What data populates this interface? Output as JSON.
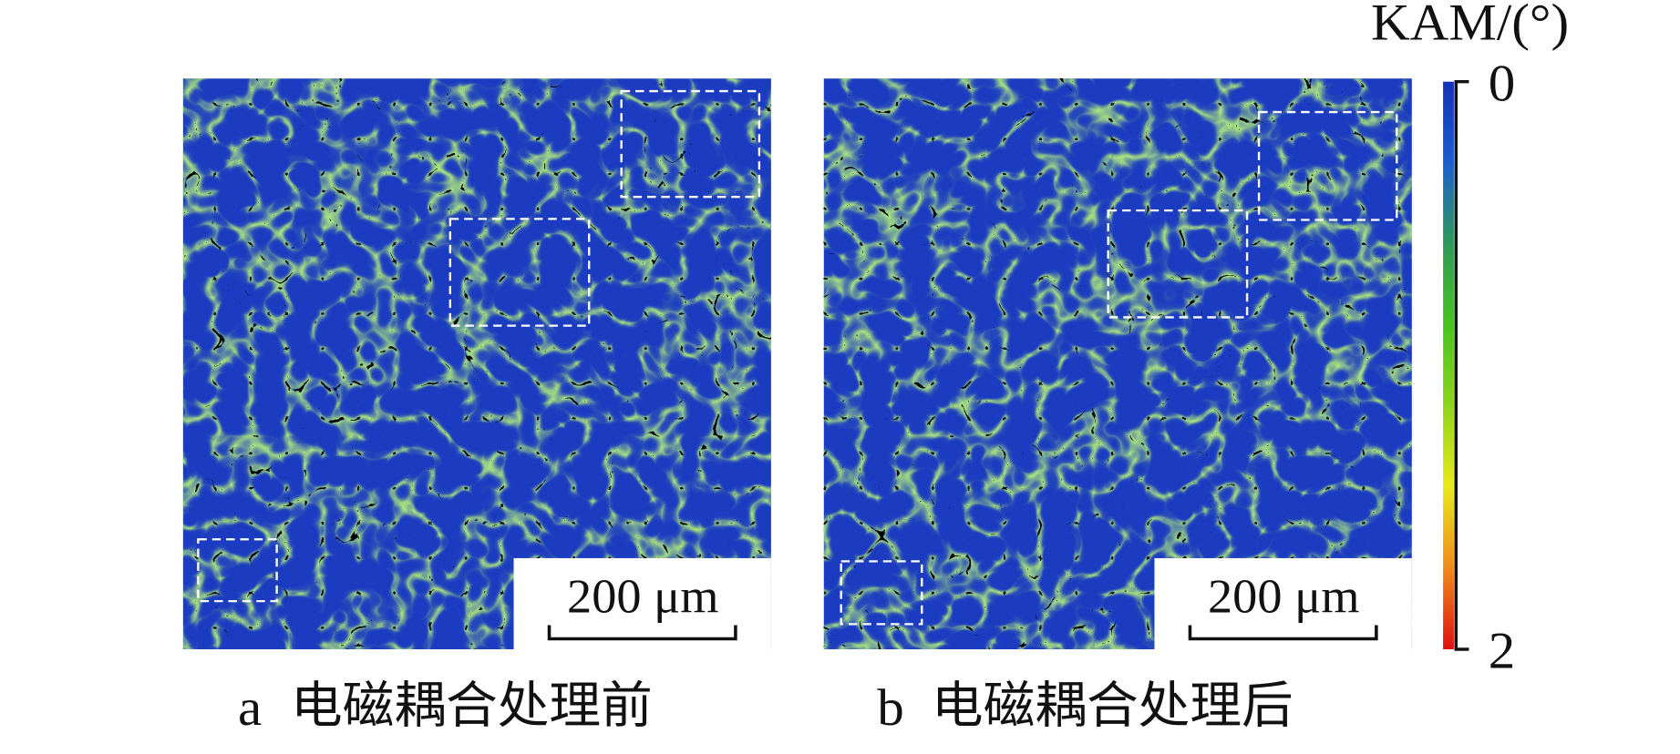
{
  "figure": {
    "colorbar": {
      "title": "KAM/(°)",
      "ticks": [
        0,
        2
      ],
      "colors": [
        "#1530b8",
        "#1a5fd0",
        "#2e9a5a",
        "#46c41e",
        "#8fd41a",
        "#e8e81a",
        "#f08a1a",
        "#e01010"
      ]
    },
    "panels": [
      {
        "label": "a",
        "caption": "电磁耦合处理前",
        "scale_bar": "200 μm"
      },
      {
        "label": "b",
        "caption": "电磁耦合处理后",
        "scale_bar": "200 μm"
      }
    ]
  }
}
